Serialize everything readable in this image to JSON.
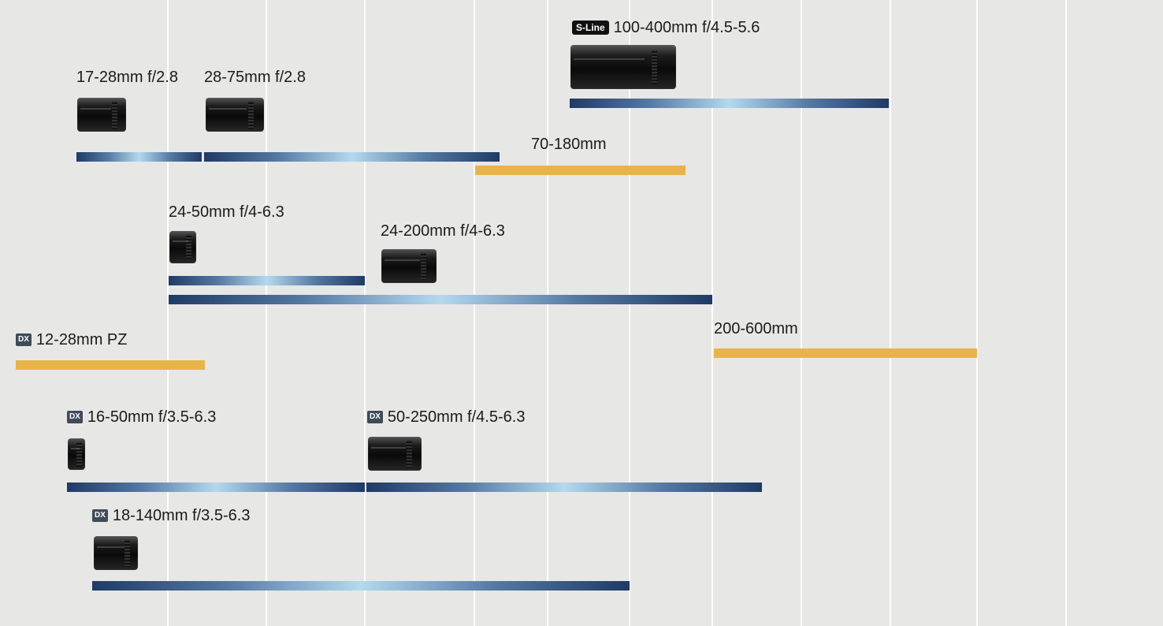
{
  "lenses": [
    {
      "id": "17-28",
      "label": "17-28mm f/2.8",
      "badge": "",
      "type": "standard"
    },
    {
      "id": "28-75",
      "label": "28-75mm f/2.8",
      "badge": "",
      "type": "standard"
    },
    {
      "id": "100-400",
      "label": "100-400mm f/4.5-5.6",
      "badge": "S-Line",
      "type": "standard"
    },
    {
      "id": "70-180",
      "label": "70-180mm",
      "badge": "",
      "type": "kit"
    },
    {
      "id": "24-50",
      "label": "24-50mm f/4-6.3",
      "badge": "",
      "type": "standard"
    },
    {
      "id": "24-200",
      "label": "24-200mm f/4-6.3",
      "badge": "",
      "type": "standard"
    },
    {
      "id": "12-28",
      "label": "12-28mm PZ",
      "badge": "DX",
      "type": "kit"
    },
    {
      "id": "200-600",
      "label": "200-600mm",
      "badge": "",
      "type": "kit"
    },
    {
      "id": "16-50",
      "label": "16-50mm f/3.5-6.3",
      "badge": "DX",
      "type": "standard"
    },
    {
      "id": "50-250",
      "label": "50-250mm f/4.5-6.3",
      "badge": "DX",
      "type": "standard"
    },
    {
      "id": "18-140",
      "label": "18-140mm f/3.5-6.3",
      "badge": "DX",
      "type": "standard"
    }
  ],
  "colors": {
    "background": "#e7e7e6",
    "gridline": "#ffffff",
    "standard_dark": "#1f3a66",
    "standard_light": "#b4d9ee",
    "kit_bar": "#e8b447",
    "badge_dx": "#3f4b58",
    "badge_sline": "#111111"
  },
  "icons": {
    "lens": "camera-lens-icon",
    "dx": "dx-badge-icon",
    "sline": "s-line-badge-icon"
  }
}
